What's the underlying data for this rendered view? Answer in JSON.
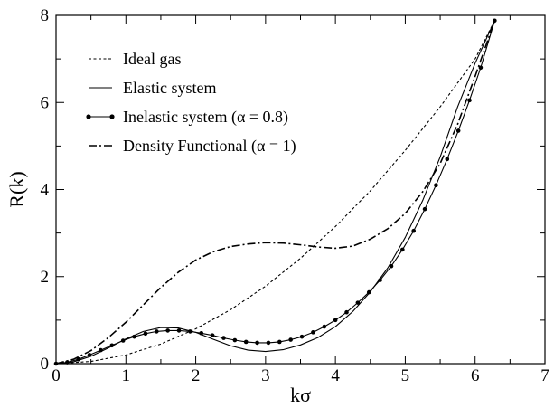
{
  "chart_data": {
    "type": "line",
    "title": "",
    "xlabel": "kσ",
    "ylabel": "R(k)",
    "xlim": [
      0,
      7
    ],
    "ylim": [
      0,
      8
    ],
    "xticks": [
      0,
      1,
      2,
      3,
      4,
      5,
      6,
      7
    ],
    "yticks": [
      0,
      2,
      4,
      6,
      8
    ],
    "grid": false,
    "legend_position": "top-left",
    "series": [
      {
        "name": "Ideal gas",
        "style": "dashed",
        "color": "#000000",
        "x": [
          0.0,
          0.5,
          1.0,
          1.5,
          2.0,
          2.5,
          3.0,
          3.5,
          4.0,
          4.5,
          5.0,
          5.5,
          6.0,
          6.28
        ],
        "y": [
          0.0,
          0.05,
          0.2,
          0.45,
          0.8,
          1.24,
          1.78,
          2.42,
          3.15,
          3.97,
          4.9,
          5.9,
          7.0,
          7.88
        ]
      },
      {
        "name": "Elastic system",
        "style": "solid",
        "color": "#000000",
        "x": [
          0.0,
          0.25,
          0.5,
          0.75,
          1.0,
          1.25,
          1.5,
          1.75,
          2.0,
          2.25,
          2.5,
          2.75,
          3.0,
          3.25,
          3.5,
          3.75,
          4.0,
          4.25,
          4.5,
          4.75,
          5.0,
          5.25,
          5.5,
          5.75,
          6.0,
          6.28
        ],
        "y": [
          0.0,
          0.04,
          0.17,
          0.36,
          0.57,
          0.74,
          0.83,
          0.82,
          0.72,
          0.56,
          0.41,
          0.31,
          0.28,
          0.32,
          0.43,
          0.6,
          0.85,
          1.2,
          1.65,
          2.2,
          2.9,
          3.75,
          4.75,
          5.9,
          6.9,
          7.88
        ]
      },
      {
        "name": "Inelastic system (α = 0.8)",
        "style": "solid-markers",
        "color": "#000000",
        "x": [
          0.0,
          0.16,
          0.32,
          0.48,
          0.64,
          0.8,
          0.96,
          1.12,
          1.28,
          1.44,
          1.6,
          1.76,
          1.92,
          2.08,
          2.24,
          2.4,
          2.56,
          2.72,
          2.88,
          3.04,
          3.2,
          3.36,
          3.52,
          3.68,
          3.84,
          4.0,
          4.16,
          4.32,
          4.48,
          4.64,
          4.8,
          4.96,
          5.12,
          5.28,
          5.44,
          5.6,
          5.76,
          5.92,
          6.08,
          6.28
        ],
        "y": [
          0.0,
          0.03,
          0.1,
          0.2,
          0.31,
          0.42,
          0.53,
          0.62,
          0.69,
          0.74,
          0.76,
          0.76,
          0.74,
          0.7,
          0.65,
          0.59,
          0.54,
          0.5,
          0.48,
          0.48,
          0.5,
          0.55,
          0.62,
          0.72,
          0.85,
          1.0,
          1.18,
          1.4,
          1.64,
          1.92,
          2.24,
          2.62,
          3.05,
          3.55,
          4.1,
          4.7,
          5.35,
          6.05,
          6.8,
          7.88
        ]
      },
      {
        "name": "Density Functional (α = 1)",
        "style": "dash-dot",
        "color": "#000000",
        "x": [
          0.0,
          0.25,
          0.5,
          0.75,
          1.0,
          1.25,
          1.5,
          1.75,
          2.0,
          2.25,
          2.5,
          2.75,
          3.0,
          3.25,
          3.5,
          3.75,
          4.0,
          4.25,
          4.5,
          4.75,
          5.0,
          5.25,
          5.5,
          5.75,
          6.0,
          6.28
        ],
        "y": [
          0.0,
          0.1,
          0.3,
          0.6,
          0.95,
          1.35,
          1.75,
          2.1,
          2.38,
          2.57,
          2.69,
          2.75,
          2.78,
          2.77,
          2.73,
          2.68,
          2.65,
          2.7,
          2.86,
          3.1,
          3.45,
          3.95,
          4.6,
          5.5,
          6.6,
          7.88
        ]
      }
    ]
  }
}
